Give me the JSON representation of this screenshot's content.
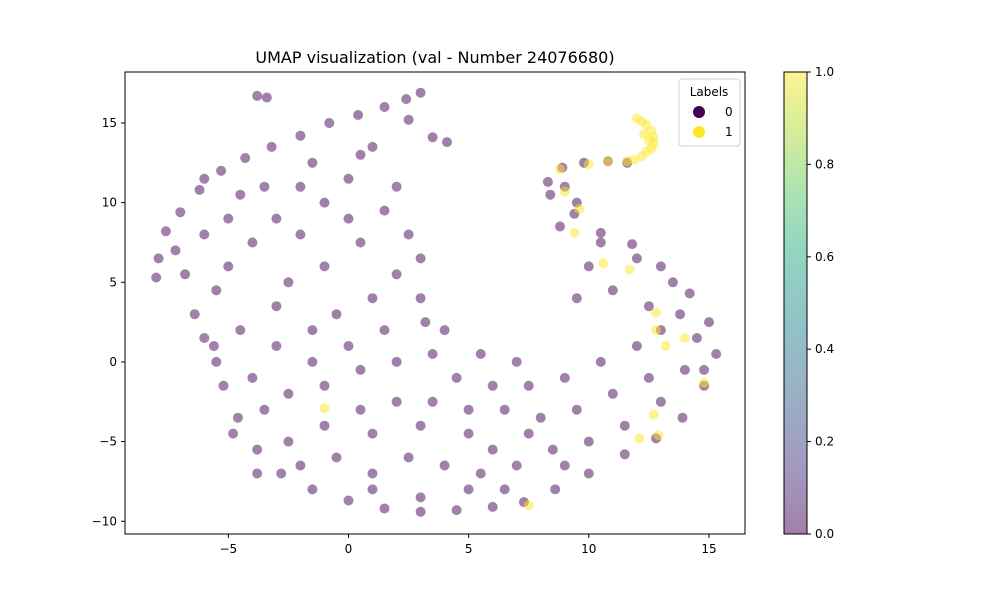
{
  "chart_data": {
    "type": "scatter",
    "title": "UMAP visualization (val - Number 24076680)",
    "xlabel": "",
    "ylabel": "",
    "xlim": [
      -9.3,
      16.5
    ],
    "ylim": [
      -10.8,
      18.2
    ],
    "x_ticks": [
      -5,
      0,
      5,
      10,
      15
    ],
    "y_ticks": [
      -10,
      -5,
      0,
      5,
      10,
      15
    ],
    "x_tick_labels": [
      "−5",
      "0",
      "5",
      "10",
      "15"
    ],
    "y_tick_labels": [
      "−10",
      "−5",
      "0",
      "5",
      "10",
      "15"
    ],
    "grid": false,
    "legend": {
      "title": "Labels",
      "placement": "top-right",
      "entries": [
        {
          "label": "0",
          "color": "#440154"
        },
        {
          "label": "1",
          "color": "#fde725"
        }
      ]
    },
    "colorbar": {
      "range": [
        0.0,
        1.0
      ],
      "ticks": [
        0.0,
        0.2,
        0.4,
        0.6,
        0.8,
        1.0
      ],
      "tick_labels": [
        "0.0",
        "0.2",
        "0.4",
        "0.6",
        "0.8",
        "1.0"
      ],
      "colormap": "viridis"
    },
    "series": [
      {
        "name": "0",
        "color": "#440154",
        "values": [
          [
            -3.8,
            16.7
          ],
          [
            -3.4,
            16.6
          ],
          [
            -7.9,
            6.5
          ],
          [
            -8.0,
            5.3
          ],
          [
            -7.6,
            8.2
          ],
          [
            -7.0,
            9.4
          ],
          [
            -6.2,
            10.8
          ],
          [
            -5.3,
            12.0
          ],
          [
            -4.3,
            12.8
          ],
          [
            -3.2,
            13.5
          ],
          [
            -2.0,
            14.2
          ],
          [
            -0.8,
            15.0
          ],
          [
            0.4,
            15.5
          ],
          [
            1.5,
            16.0
          ],
          [
            2.4,
            16.5
          ],
          [
            3.0,
            16.9
          ],
          [
            2.5,
            15.2
          ],
          [
            3.5,
            14.1
          ],
          [
            4.1,
            13.8
          ],
          [
            -6.4,
            3.0
          ],
          [
            -5.6,
            1.0
          ],
          [
            -5.2,
            -1.5
          ],
          [
            -4.6,
            -3.5
          ],
          [
            -3.8,
            -5.5
          ],
          [
            -2.8,
            -7.0
          ],
          [
            -1.5,
            -8.0
          ],
          [
            0.0,
            -8.7
          ],
          [
            1.5,
            -9.2
          ],
          [
            3.0,
            -9.4
          ],
          [
            4.5,
            -9.3
          ],
          [
            6.0,
            -9.1
          ],
          [
            7.3,
            -8.8
          ],
          [
            8.6,
            -8.0
          ],
          [
            10.0,
            -7.0
          ],
          [
            11.5,
            -5.8
          ],
          [
            12.8,
            -4.8
          ],
          [
            13.9,
            -3.5
          ],
          [
            14.8,
            -1.5
          ],
          [
            15.3,
            0.5
          ],
          [
            15.0,
            2.5
          ],
          [
            14.2,
            4.3
          ],
          [
            13.0,
            6.0
          ],
          [
            11.8,
            7.4
          ],
          [
            10.5,
            8.1
          ],
          [
            9.4,
            9.3
          ],
          [
            8.4,
            10.5
          ],
          [
            8.3,
            11.3
          ],
          [
            8.9,
            12.2
          ],
          [
            9.8,
            12.5
          ],
          [
            10.8,
            12.6
          ],
          [
            11.6,
            12.5
          ],
          [
            -2.0,
            11.0
          ],
          [
            -1.0,
            10.0
          ],
          [
            0.0,
            11.5
          ],
          [
            1.0,
            13.5
          ],
          [
            -3.0,
            9.0
          ],
          [
            -4.0,
            7.5
          ],
          [
            -5.0,
            6.0
          ],
          [
            -6.0,
            8.0
          ],
          [
            -2.5,
            5.0
          ],
          [
            -1.0,
            6.0
          ],
          [
            0.5,
            7.5
          ],
          [
            1.5,
            9.5
          ],
          [
            2.0,
            11.0
          ],
          [
            -0.5,
            3.0
          ],
          [
            1.0,
            4.0
          ],
          [
            2.0,
            5.5
          ],
          [
            3.0,
            4.0
          ],
          [
            3.2,
            2.5
          ],
          [
            1.5,
            2.0
          ],
          [
            0.0,
            1.0
          ],
          [
            -1.5,
            0.0
          ],
          [
            -3.0,
            1.0
          ],
          [
            -4.5,
            2.0
          ],
          [
            -4.0,
            -1.0
          ],
          [
            -2.5,
            -2.0
          ],
          [
            -1.0,
            -1.5
          ],
          [
            0.5,
            -0.5
          ],
          [
            2.0,
            0.0
          ],
          [
            3.5,
            0.5
          ],
          [
            4.5,
            -1.0
          ],
          [
            6.0,
            -1.5
          ],
          [
            7.5,
            -1.5
          ],
          [
            9.0,
            -1.0
          ],
          [
            10.5,
            0.0
          ],
          [
            12.0,
            1.0
          ],
          [
            13.0,
            2.0
          ],
          [
            13.8,
            3.0
          ],
          [
            12.5,
            -1.0
          ],
          [
            11.0,
            -2.0
          ],
          [
            9.5,
            -3.0
          ],
          [
            8.0,
            -3.5
          ],
          [
            6.5,
            -3.0
          ],
          [
            5.0,
            -3.0
          ],
          [
            3.5,
            -2.5
          ],
          [
            2.0,
            -2.5
          ],
          [
            0.5,
            -3.0
          ],
          [
            -1.0,
            -4.0
          ],
          [
            -2.5,
            -5.0
          ],
          [
            -3.5,
            -3.0
          ],
          [
            -2.0,
            -6.5
          ],
          [
            -0.5,
            -6.0
          ],
          [
            1.0,
            -7.0
          ],
          [
            2.5,
            -6.0
          ],
          [
            4.0,
            -6.5
          ],
          [
            5.5,
            -7.0
          ],
          [
            7.0,
            -6.5
          ],
          [
            8.5,
            -5.5
          ],
          [
            10.0,
            -5.0
          ],
          [
            11.5,
            -4.0
          ],
          [
            13.0,
            -2.5
          ],
          [
            14.0,
            -0.5
          ],
          [
            1.0,
            -8.0
          ],
          [
            3.0,
            -8.5
          ],
          [
            5.0,
            -8.0
          ],
          [
            6.5,
            -8.0
          ],
          [
            -5.5,
            4.5
          ],
          [
            -6.8,
            5.5
          ],
          [
            -7.2,
            7.0
          ],
          [
            -5.0,
            9.0
          ],
          [
            -3.5,
            11.0
          ],
          [
            -1.5,
            12.5
          ],
          [
            0.5,
            13.0
          ],
          [
            -3.0,
            3.5
          ],
          [
            -1.5,
            2.0
          ],
          [
            2.5,
            8.0
          ],
          [
            3.0,
            6.5
          ],
          [
            -2.0,
            8.0
          ],
          [
            0.0,
            9.0
          ],
          [
            -4.5,
            10.5
          ],
          [
            -6.0,
            11.5
          ],
          [
            9.5,
            10.0
          ],
          [
            9.0,
            11.0
          ],
          [
            10.5,
            7.5
          ],
          [
            12.0,
            6.5
          ],
          [
            13.5,
            5.0
          ],
          [
            14.5,
            1.5
          ],
          [
            14.8,
            -0.5
          ],
          [
            12.5,
            3.5
          ],
          [
            11.0,
            4.5
          ],
          [
            10.0,
            6.0
          ],
          [
            8.8,
            8.5
          ],
          [
            9.5,
            4.0
          ],
          [
            7.0,
            0.0
          ],
          [
            5.5,
            0.5
          ],
          [
            4.0,
            2.0
          ],
          [
            5.0,
            -4.5
          ],
          [
            7.5,
            -4.5
          ],
          [
            9.0,
            -6.5
          ],
          [
            6.0,
            -5.5
          ],
          [
            3.0,
            -4.0
          ],
          [
            -4.8,
            -4.5
          ],
          [
            -5.5,
            0.0
          ],
          [
            -6.0,
            1.5
          ],
          [
            1.0,
            -4.5
          ],
          [
            -3.8,
            -7.0
          ]
        ]
      },
      {
        "name": "1",
        "color": "#fde725",
        "values": [
          [
            12.0,
            15.3
          ],
          [
            12.2,
            15.1
          ],
          [
            12.4,
            14.9
          ],
          [
            12.6,
            14.5
          ],
          [
            12.7,
            14.1
          ],
          [
            12.7,
            13.7
          ],
          [
            12.6,
            13.4
          ],
          [
            12.4,
            13.2
          ],
          [
            12.2,
            12.9
          ],
          [
            11.9,
            12.7
          ],
          [
            12.3,
            14.3
          ],
          [
            12.5,
            13.9
          ],
          [
            11.6,
            12.6
          ],
          [
            10.8,
            12.6
          ],
          [
            10.0,
            12.4
          ],
          [
            9.0,
            10.7
          ],
          [
            9.6,
            9.6
          ],
          [
            8.8,
            12.1
          ],
          [
            9.4,
            8.1
          ],
          [
            10.6,
            6.2
          ],
          [
            11.7,
            5.8
          ],
          [
            12.8,
            2.0
          ],
          [
            12.8,
            3.1
          ],
          [
            14.0,
            1.5
          ],
          [
            13.2,
            1.0
          ],
          [
            12.7,
            -3.3
          ],
          [
            12.1,
            -4.8
          ],
          [
            12.9,
            -4.6
          ],
          [
            -1.0,
            -2.9
          ],
          [
            7.5,
            -9.0
          ],
          [
            14.8,
            -1.3
          ]
        ]
      }
    ]
  }
}
